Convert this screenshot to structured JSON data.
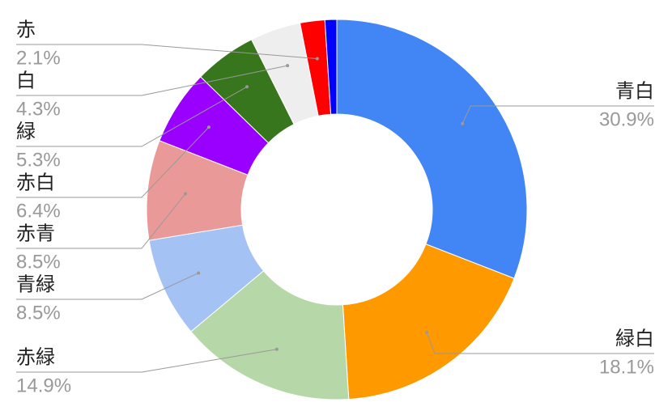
{
  "chart_data": {
    "type": "pie",
    "donut": true,
    "categories": [
      "青白",
      "緑白",
      "赤緑",
      "青緑",
      "赤青",
      "赤白",
      "緑",
      "白",
      "赤",
      null
    ],
    "values": [
      30.9,
      18.1,
      14.9,
      8.5,
      8.5,
      6.4,
      5.3,
      4.3,
      2.1,
      1.0
    ],
    "value_labels": [
      "30.9%",
      "18.1%",
      "14.9%",
      "8.5%",
      "8.5%",
      "6.4%",
      "5.3%",
      "4.3%",
      "2.1%",
      null
    ],
    "colors": [
      "#4285f4",
      "#ff9900",
      "#b6d7a8",
      "#a4c2f4",
      "#ea9999",
      "#9900ff",
      "#38761d",
      "#eeeeee",
      "#ff0000",
      "#0000ff"
    ]
  }
}
